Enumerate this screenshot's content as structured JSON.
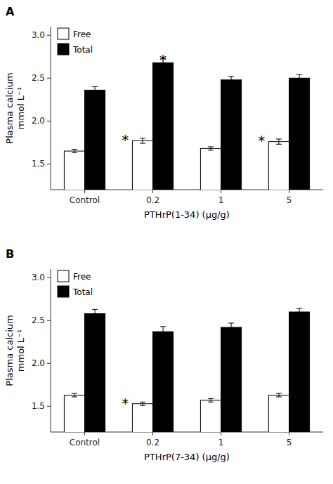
{
  "chart_data": [
    {
      "type": "bar",
      "title": "A",
      "xlabel": "PTHrP(1-34) (μg/g)",
      "ylabel": "Plasma calcium\nmmol L⁻¹",
      "categories": [
        "Control",
        "0.2",
        "1",
        "5"
      ],
      "series": [
        {
          "name": "Free",
          "color": "white",
          "values": [
            1.65,
            1.77,
            1.68,
            1.76
          ],
          "errors": [
            0.02,
            0.03,
            0.02,
            0.03
          ]
        },
        {
          "name": "Total",
          "color": "black",
          "values": [
            2.36,
            2.68,
            2.48,
            2.5
          ],
          "errors": [
            0.04,
            0.05,
            0.04,
            0.04
          ]
        }
      ],
      "annotations": [
        {
          "text": "*",
          "series": "Free",
          "category": "0.2"
        },
        {
          "text": "*",
          "series": "Free",
          "category": "5"
        },
        {
          "text": "*",
          "series": "Total",
          "category": "0.2"
        }
      ],
      "ylim": [
        1.2,
        3.1
      ],
      "yticks": [
        1.5,
        {
          "value": 2.0,
          "label": "2.0"
        },
        2.5,
        {
          "value": 3.0,
          "label": "3.0"
        }
      ],
      "legend": "upper left",
      "grid": false
    },
    {
      "type": "bar",
      "title": "B",
      "xlabel": "PTHrP(7-34) (μg/g)",
      "ylabel": "Plasma calcium\nmmol L⁻¹",
      "categories": [
        "Control",
        "0.2",
        "1",
        "5"
      ],
      "series": [
        {
          "name": "Free",
          "color": "white",
          "values": [
            1.63,
            1.53,
            1.57,
            1.63
          ],
          "errors": [
            0.02,
            0.02,
            0.02,
            0.02
          ]
        },
        {
          "name": "Total",
          "color": "black",
          "values": [
            2.58,
            2.37,
            2.42,
            2.6
          ],
          "errors": [
            0.05,
            0.06,
            0.05,
            0.04
          ]
        }
      ],
      "annotations": [
        {
          "text": "*",
          "series": "Free",
          "category": "0.2"
        }
      ],
      "ylim": [
        1.2,
        3.1
      ],
      "yticks": [
        1.5,
        {
          "value": 2.0,
          "label": "2.0"
        },
        2.5,
        {
          "value": 3.0,
          "label": "3.0"
        }
      ],
      "legend": "upper left",
      "grid": false
    }
  ]
}
